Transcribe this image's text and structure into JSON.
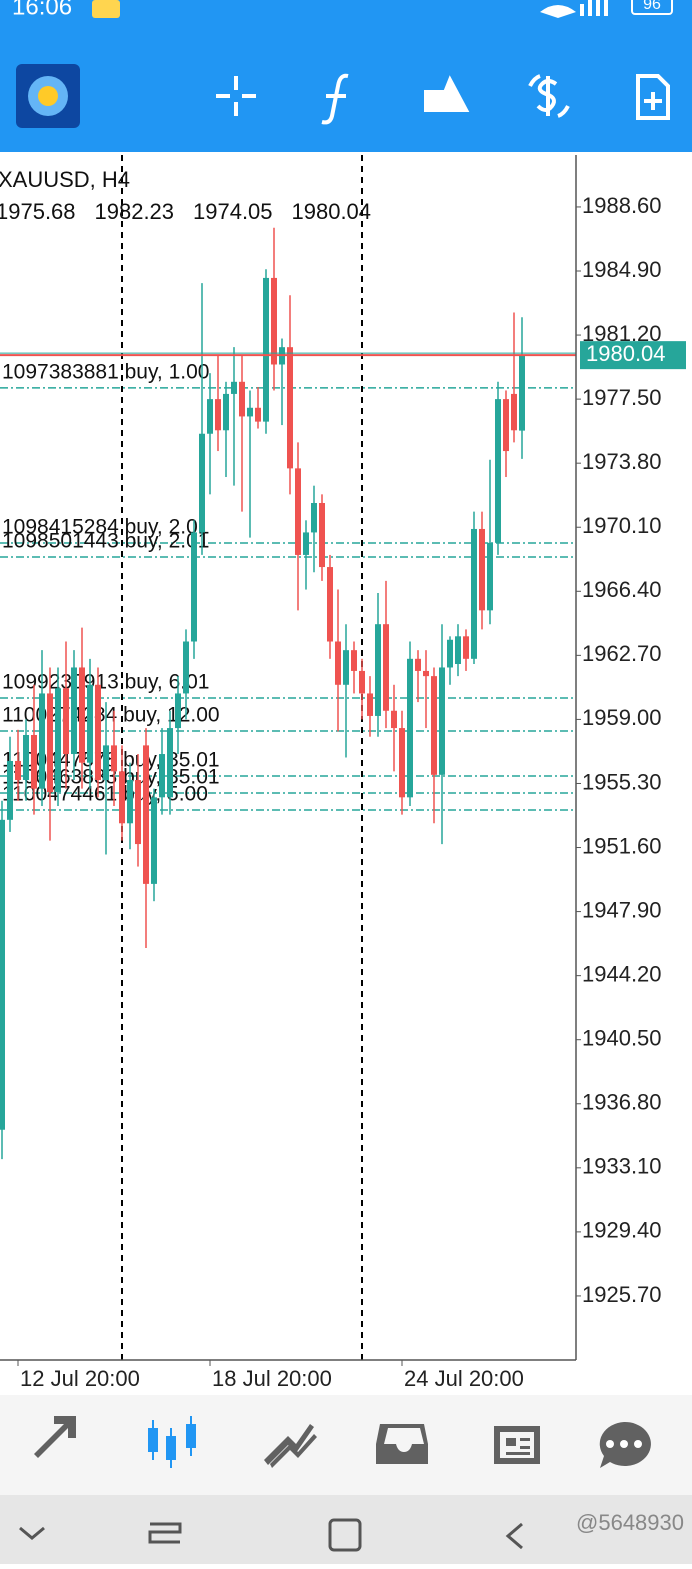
{
  "status_bar": {
    "time": "16:06",
    "battery": "96"
  },
  "chart_data": {
    "type": "candlestick",
    "title": "XAUUSD, H4",
    "categories": [
      null,
      null,
      "12 Jul 20:00",
      null,
      null,
      null,
      null,
      null,
      null,
      null,
      null,
      null,
      null,
      null,
      null,
      null,
      null,
      null,
      null,
      null,
      null,
      null,
      null,
      null,
      null,
      null,
      "18 Jul 20:00",
      null,
      null,
      null,
      null,
      null,
      null,
      null,
      null,
      null,
      null,
      null,
      null,
      null,
      null,
      null,
      null,
      null,
      null,
      null,
      null,
      null,
      null,
      null,
      "24 Jul 20:00",
      null,
      null,
      null,
      null,
      null,
      null,
      null,
      null,
      null,
      null,
      null,
      null,
      null,
      null,
      null
    ],
    "open": [
      1935.3,
      1953.2,
      1956.6,
      1955.5,
      1958.1,
      1955.0,
      1960.5,
      1954.8,
      1960.8,
      1957.0,
      1962.0,
      1956.5,
      1961.0,
      1955.5,
      1957.5,
      1956.0,
      1953.0,
      1955.5,
      1957.5,
      1949.5,
      1954.5,
      1954.5,
      1958.5,
      1960.5,
      1963.5,
      1969.8,
      1975.5,
      1977.5,
      1975.7,
      1977.8,
      1978.5,
      1976.5,
      1977.0,
      1976.2,
      1984.5,
      1979.5,
      1980.5,
      1973.5,
      1968.5,
      1969.8,
      1971.5,
      1967.8,
      1963.5,
      1961.0,
      1963.0,
      1961.8,
      1960.5,
      1959.2,
      1964.5,
      1959.5,
      1958.5,
      1954.5,
      1962.5,
      1961.8,
      1961.5,
      1955.8,
      1962.0,
      1962.2,
      1963.8,
      1962.5,
      1970.0,
      1965.3,
      1969.2,
      1977.5,
      1977.8,
      1975.68
    ],
    "high": [
      1954.3,
      1958.0,
      1958.4,
      1959.0,
      1961.0,
      1963.0,
      1962.0,
      1962.0,
      1963.5,
      1963.0,
      1964.3,
      1962.5,
      1962.0,
      1960.0,
      1959.5,
      1957.5,
      1956.5,
      1957.0,
      1958.5,
      1955.0,
      1958.5,
      1959.5,
      1961.5,
      1964.2,
      1970.5,
      1984.2,
      1979.0,
      1980.0,
      1978.5,
      1980.5,
      1980.0,
      1978.0,
      1978.2,
      1985.0,
      1987.4,
      1981.0,
      1983.5,
      1975.0,
      1970.5,
      1972.5,
      1972.0,
      1968.5,
      1966.5,
      1964.5,
      1963.5,
      1962.5,
      1961.5,
      1966.3,
      1967.0,
      1961.0,
      1959.5,
      1963.5,
      1963.0,
      1963.0,
      1962.0,
      1964.5,
      1963.8,
      1964.5,
      1964.2,
      1971.0,
      1971.0,
      1974.0,
      1978.5,
      1978.0,
      1982.5,
      1982.23
    ],
    "low": [
      1933.6,
      1952.5,
      1954.3,
      1954.3,
      1953.5,
      1954.0,
      1952.0,
      1954.0,
      1955.0,
      1955.5,
      1955.0,
      1955.0,
      1954.5,
      1951.2,
      1954.0,
      1952.0,
      1951.5,
      1950.5,
      1945.8,
      1948.5,
      1953.5,
      1953.5,
      1957.0,
      1959.0,
      1962.5,
      1968.5,
      1972.0,
      1974.5,
      1973.0,
      1972.5,
      1971.0,
      1969.5,
      1975.8,
      1975.5,
      1978.0,
      1976.0,
      1972.0,
      1965.3,
      1966.5,
      1967.5,
      1967.0,
      1962.5,
      1958.3,
      1956.8,
      1960.5,
      1959.0,
      1958.0,
      1958.0,
      1958.5,
      1956.0,
      1953.5,
      1954.0,
      1960.0,
      1958.5,
      1953.0,
      1951.8,
      1961.0,
      1961.5,
      1961.8,
      1962.2,
      1964.2,
      1964.5,
      1968.5,
      1973.0,
      1975.0,
      1974.05
    ],
    "close": [
      1953.2,
      1956.6,
      1955.5,
      1958.1,
      1955.0,
      1960.5,
      1954.8,
      1960.8,
      1957.0,
      1962.0,
      1956.5,
      1961.0,
      1955.5,
      1957.5,
      1956.0,
      1953.0,
      1955.5,
      1951.8,
      1949.5,
      1954.5,
      1957.0,
      1958.5,
      1960.5,
      1963.5,
      1969.8,
      1975.5,
      1977.5,
      1975.7,
      1977.8,
      1978.5,
      1976.5,
      1977.0,
      1976.2,
      1984.5,
      1979.5,
      1980.5,
      1973.5,
      1968.5,
      1969.8,
      1971.5,
      1967.8,
      1963.5,
      1961.0,
      1963.0,
      1961.8,
      1960.5,
      1959.2,
      1964.5,
      1959.5,
      1958.5,
      1954.5,
      1962.5,
      1961.8,
      1961.5,
      1955.8,
      1962.0,
      1963.6,
      1963.8,
      1962.5,
      1970.0,
      1965.3,
      1969.2,
      1977.5,
      1974.5,
      1975.7,
      1980.04
    ],
    "up_color": "#26a69a",
    "down_color": "#ef5350",
    "ylim": [
      1922.0,
      1991.6
    ],
    "yticks": [
      {
        "value": 1988.6,
        "label": "1988.60"
      },
      {
        "value": 1984.9,
        "label": "1984.90"
      },
      {
        "value": 1981.2,
        "label": "1981.20"
      },
      {
        "value": 1977.5,
        "label": "1977.50"
      },
      {
        "value": 1973.8,
        "label": "1973.80"
      },
      {
        "value": 1970.1,
        "label": "1970.10"
      },
      {
        "value": 1966.4,
        "label": "1966.40"
      },
      {
        "value": 1962.7,
        "label": "1962.70"
      },
      {
        "value": 1959.0,
        "label": "1959.00"
      },
      {
        "value": 1955.3,
        "label": "1955.30"
      },
      {
        "value": 1951.6,
        "label": "1951.60"
      },
      {
        "value": 1947.9,
        "label": "1947.90"
      },
      {
        "value": 1944.2,
        "label": "1944.20"
      },
      {
        "value": 1940.5,
        "label": "1940.50"
      },
      {
        "value": 1936.8,
        "label": "1936.80"
      },
      {
        "value": 1933.1,
        "label": "1933.10"
      },
      {
        "value": 1929.4,
        "label": "1929.40"
      },
      {
        "value": 1925.7,
        "label": "1925.70"
      }
    ],
    "orders": [
      {
        "label": "1097383881 buy, 1.00",
        "price": 1978.15
      },
      {
        "label": "1098415284 buy, 2.01",
        "price": 1969.19
      },
      {
        "label": "1098501443 buy, 2.01",
        "price": 1968.38
      },
      {
        "label": "1099230913 buy, 6.01",
        "price": 1960.24
      },
      {
        "label": "1100274284 buy, 12.00",
        "price": 1958.33
      },
      {
        "label": "1100447578 buy, 35.01",
        "price": 1955.73
      },
      {
        "label": "1100463883 buy, 35.01",
        "price": 1954.75
      },
      {
        "label": "1100474461 buy, 5.00",
        "price": 1953.77
      }
    ]
  },
  "watermark": "@5648930"
}
